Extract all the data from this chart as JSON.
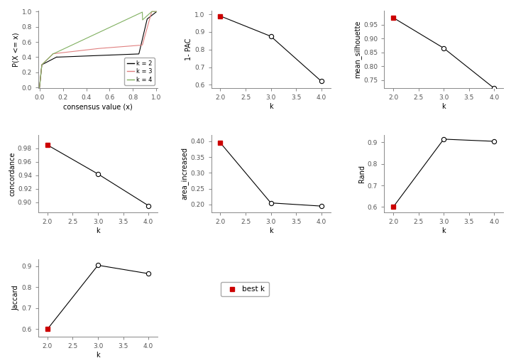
{
  "k_values": [
    2,
    3,
    4
  ],
  "one_minus_pac": [
    0.99,
    0.875,
    0.62
  ],
  "mean_silhouette": [
    0.975,
    0.865,
    0.72
  ],
  "concordance": [
    0.985,
    0.942,
    0.895
  ],
  "area_increased": [
    0.395,
    0.205,
    0.195
  ],
  "rand": [
    0.6,
    0.915,
    0.905
  ],
  "jaccard": [
    0.6,
    0.905,
    0.865
  ],
  "best_k_index": 0,
  "open_marker_indices": [
    1,
    2
  ],
  "line_color": "#000000",
  "best_k_color": "#cc0000",
  "open_marker_color": "#000000",
  "bg_color": "#ffffff",
  "cdf_color_k2": "#000000",
  "cdf_color_k3": "#e08080",
  "cdf_color_k4": "#80b060",
  "pac_ylabel": "1- PAC",
  "sil_ylabel": "mean_silhouette",
  "conc_ylabel": "concordance",
  "area_ylabel": "area_increased",
  "rand_ylabel": "Rand",
  "jacc_ylabel": "Jaccard",
  "k_xlabel": "k",
  "consensus_xlabel": "consensus value (x)",
  "consensus_ylabel": "P(X <= x)",
  "pac_ylim": [
    0.58,
    1.02
  ],
  "pac_yticks": [
    0.6,
    0.7,
    0.8,
    0.9,
    1.0
  ],
  "sil_ylim": [
    0.72,
    1.0
  ],
  "sil_yticks": [
    0.75,
    0.8,
    0.85,
    0.9,
    0.95
  ],
  "conc_ylim": [
    0.885,
    1.0
  ],
  "conc_yticks": [
    0.9,
    0.92,
    0.94,
    0.96,
    0.98
  ],
  "area_ylim": [
    0.175,
    0.42
  ],
  "area_yticks": [
    0.2,
    0.25,
    0.3,
    0.35,
    0.4
  ],
  "rand_ylim": [
    0.575,
    0.935
  ],
  "rand_yticks": [
    0.6,
    0.7,
    0.8,
    0.9
  ],
  "jacc_ylim": [
    0.565,
    0.935
  ],
  "jacc_yticks": [
    0.6,
    0.7,
    0.8,
    0.9
  ]
}
